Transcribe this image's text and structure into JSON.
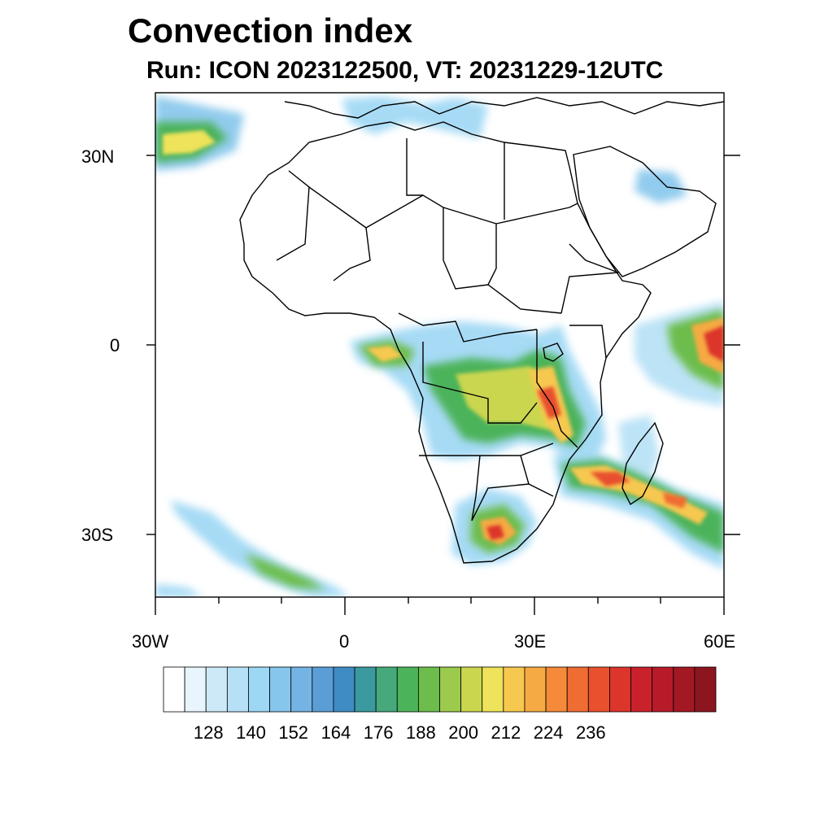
{
  "title": "Convection index",
  "subtitle": "Run: ICON 2023122500,  VT: 20231229-12UTC",
  "map": {
    "lon_range": [
      -30,
      60
    ],
    "lat_range": [
      -40,
      40
    ],
    "lat_labels": [
      "30N",
      "0",
      "30S"
    ],
    "lon_labels": [
      "30W",
      "0",
      "30E",
      "60E"
    ]
  },
  "colorbar": {
    "labels": [
      "128",
      "140",
      "152",
      "164",
      "176",
      "188",
      "200",
      "212",
      "224",
      "236"
    ],
    "colors": [
      "#ffffff",
      "#e8f5fc",
      "#cde9f8",
      "#b5e0f6",
      "#9dd7f4",
      "#86c6ec",
      "#74b4e4",
      "#5b9ed6",
      "#3f8bc4",
      "#3a9aa0",
      "#45a97c",
      "#4bb35a",
      "#6cbd4c",
      "#9cca4c",
      "#cbd64f",
      "#eee35a",
      "#f7c84f",
      "#f6aa43",
      "#f48a3a",
      "#ef6c33",
      "#e8502e",
      "#dc352c",
      "#c9222c",
      "#b71b29",
      "#a21823",
      "#8c1520"
    ]
  }
}
